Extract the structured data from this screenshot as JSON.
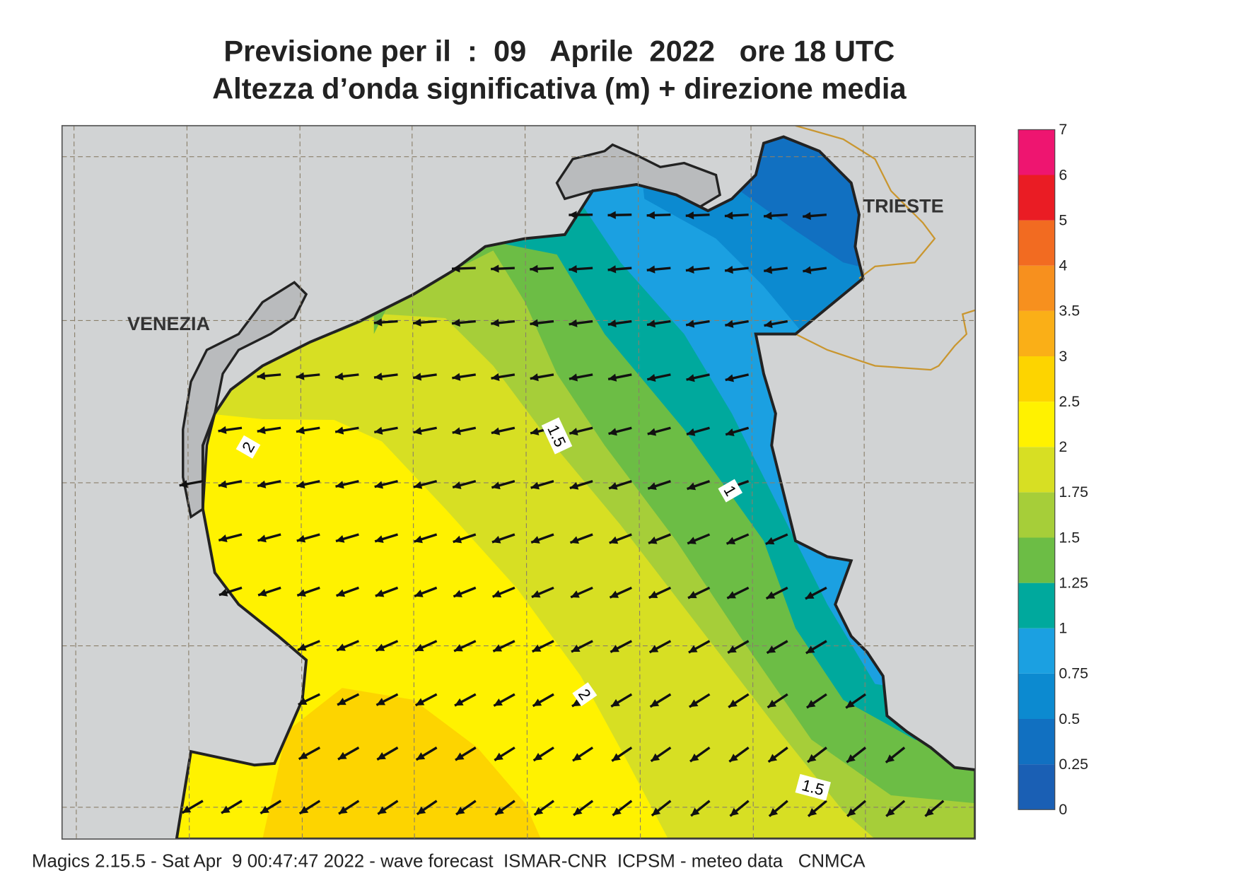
{
  "title": {
    "line1": "Previsione per il  :  09   Aprile  2022   ore 18 UTC",
    "line2": "Altezza d’onda significativa (m) + direzione media"
  },
  "places": [
    "VENEZIA",
    "TRIESTE"
  ],
  "contour_labels": [
    "1.5",
    "2",
    "1",
    "2",
    "1.5"
  ],
  "colorbar": {
    "levels": [
      0,
      0.25,
      0.5,
      0.75,
      1,
      1.25,
      1.5,
      1.75,
      2,
      2.5,
      3,
      3.5,
      4,
      5,
      6,
      7
    ],
    "colors": [
      "#1a5fb4",
      "#1170c1",
      "#0c8ad0",
      "#1ba0e1",
      "#00a99d",
      "#6cbd45",
      "#a6ce39",
      "#d7df23",
      "#fff200",
      "#fdd400",
      "#faaf17",
      "#f7901e",
      "#f26b21",
      "#ea1c24",
      "#ee1570"
    ]
  },
  "footer": "Magics 2.15.5 - Sat Apr  9 00:47:47 2022 - wave forecast  ISMAR-CNR  ICPSM - meteo data   CNMCA"
}
